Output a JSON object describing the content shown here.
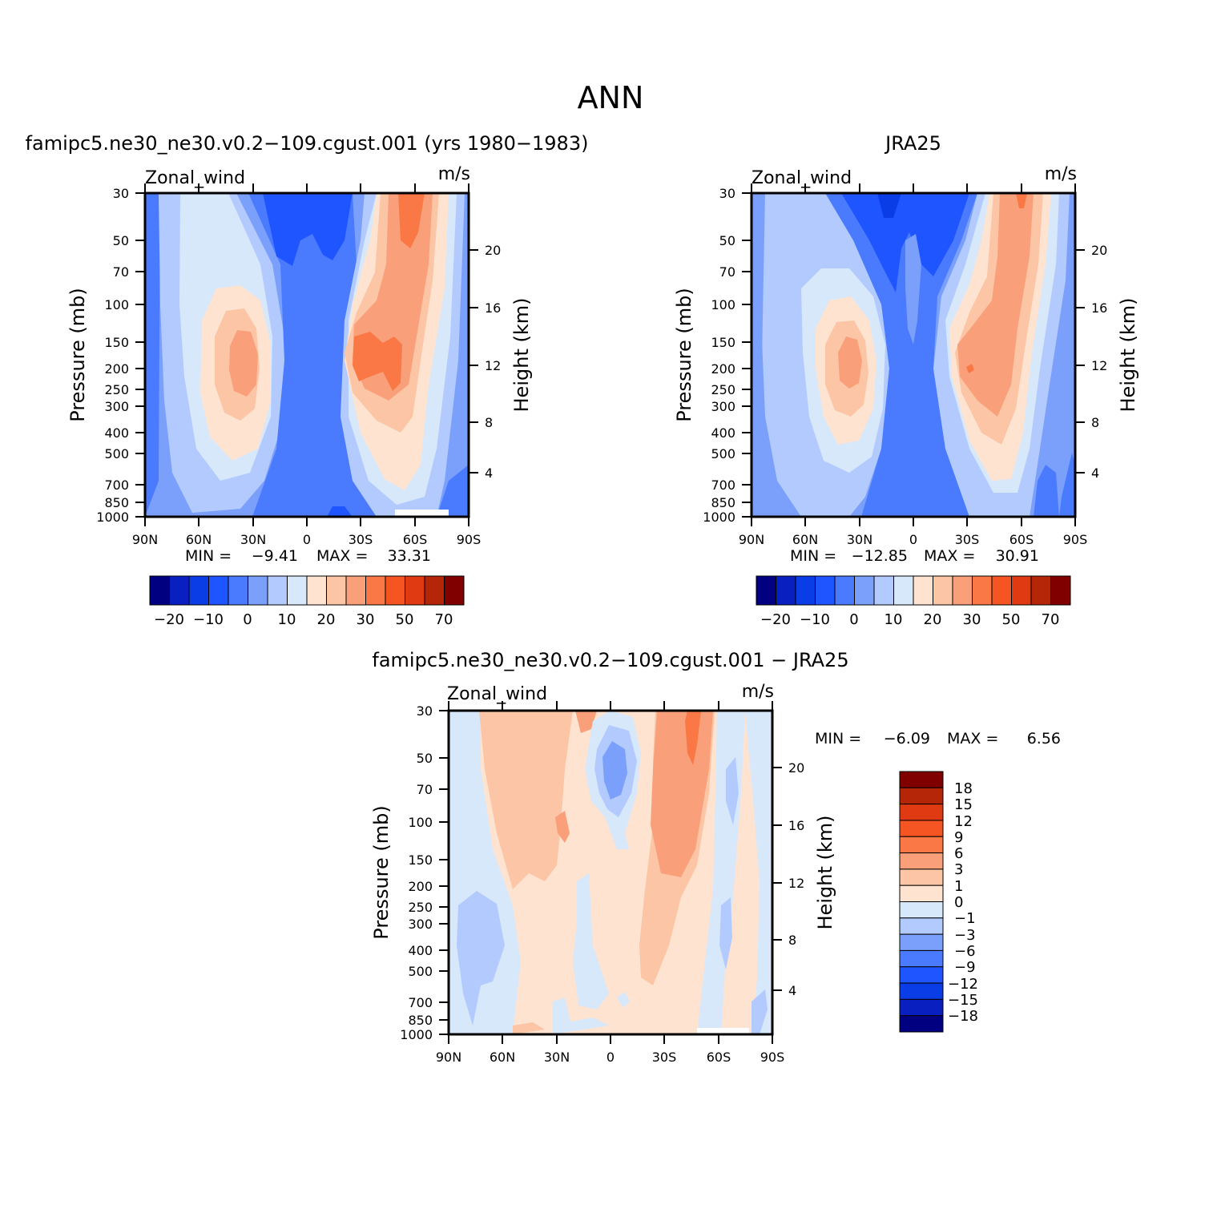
{
  "figure": {
    "title": "ANN"
  },
  "chart_data": [
    {
      "id": "model",
      "type": "heatmap",
      "title": "famipc5.ne30_ne30.v0.2−109.cgust.001 (yrs  1980−1983)",
      "variable": "Zonal_wind",
      "units": "m/s",
      "ylabel": "Pressure  (mb)",
      "ylabel_right": "Height  (km)",
      "x_ticks": [
        "90N",
        "60N",
        "30N",
        "0",
        "30S",
        "60S",
        "90S"
      ],
      "y_ticks": [
        "30",
        "50",
        "70",
        "100",
        "150",
        "200",
        "250",
        "300",
        "400",
        "500",
        "700",
        "850",
        "1000"
      ],
      "y_ticks_right": [
        "20",
        "16",
        "12",
        "8",
        "4"
      ],
      "min_label": "MIN  =",
      "min": "−9.41",
      "max_label": "MAX  =",
      "max": "33.31",
      "colorbar": {
        "orientation": "horizontal",
        "labels": [
          "−20",
          "−10",
          "0",
          "10",
          "20",
          "30",
          "50",
          "70"
        ],
        "colors": [
          "#000080",
          "#0a1fbf",
          "#0a3de6",
          "#1f55ff",
          "#4a7bff",
          "#7aa0fb",
          "#b3caff",
          "#d7e8fb",
          "#fde3d0",
          "#fcc5a5",
          "#f9a07a",
          "#fa7845",
          "#f55522",
          "#e03a12",
          "#b52608",
          "#800000"
        ]
      },
      "features": [
        {
          "type": "subtropical_jet",
          "hemisphere": "north",
          "peak": "20–30 m/s",
          "lat": "35N",
          "pressure": "200 mb"
        },
        {
          "type": "subtropical_jet",
          "hemisphere": "south",
          "peak": "30–50 m/s",
          "lat": "35–45S",
          "pressure": "200 mb"
        },
        {
          "type": "easterlies",
          "region": "tropics",
          "value": "−10 to 0 m/s"
        }
      ]
    },
    {
      "id": "obs",
      "type": "heatmap",
      "title": "JRA25",
      "variable": "Zonal_wind",
      "units": "m/s",
      "ylabel": "Pressure  (mb)",
      "ylabel_right": "Height  (km)",
      "x_ticks": [
        "90N",
        "60N",
        "30N",
        "0",
        "30S",
        "60S",
        "90S"
      ],
      "y_ticks": [
        "30",
        "50",
        "70",
        "100",
        "150",
        "200",
        "250",
        "300",
        "400",
        "500",
        "700",
        "850",
        "1000"
      ],
      "y_ticks_right": [
        "20",
        "16",
        "12",
        "8",
        "4"
      ],
      "min_label": "MIN  =",
      "min": "−12.85",
      "max_label": "MAX  =",
      "max": "30.91",
      "colorbar": {
        "orientation": "horizontal",
        "labels": [
          "−20",
          "−10",
          "0",
          "10",
          "20",
          "30",
          "50",
          "70"
        ],
        "colors": [
          "#000080",
          "#0a1fbf",
          "#0a3de6",
          "#1f55ff",
          "#4a7bff",
          "#7aa0fb",
          "#b3caff",
          "#d7e8fb",
          "#fde3d0",
          "#fcc5a5",
          "#f9a07a",
          "#fa7845",
          "#f55522",
          "#e03a12",
          "#b52608",
          "#800000"
        ]
      },
      "features": [
        {
          "type": "subtropical_jet",
          "hemisphere": "north",
          "peak": "20–30 m/s",
          "lat": "35N",
          "pressure": "200 mb"
        },
        {
          "type": "subtropical_jet",
          "hemisphere": "south",
          "peak": "30–50 m/s",
          "lat": "30–45S",
          "pressure": "200 mb"
        },
        {
          "type": "easterlies",
          "region": "tropics",
          "value": "−10 to 0 m/s"
        }
      ]
    },
    {
      "id": "diff",
      "type": "heatmap",
      "title": "famipc5.ne30_ne30.v0.2−109.cgust.001  −  JRA25",
      "variable": "Zonal_wind",
      "units": "m/s",
      "ylabel": "Pressure  (mb)",
      "ylabel_right": "Height  (km)",
      "x_ticks": [
        "90N",
        "60N",
        "30N",
        "0",
        "30S",
        "60S",
        "90S"
      ],
      "y_ticks": [
        "30",
        "50",
        "70",
        "100",
        "150",
        "200",
        "250",
        "300",
        "400",
        "500",
        "700",
        "850",
        "1000"
      ],
      "y_ticks_right": [
        "20",
        "16",
        "12",
        "8",
        "4"
      ],
      "min_label": "MIN  =",
      "min": "−6.09",
      "max_label": "MAX  =",
      "max": "6.56",
      "colorbar": {
        "orientation": "vertical",
        "labels": [
          "18",
          "15",
          "12",
          "9",
          "6",
          "3",
          "1",
          "0",
          "−1",
          "−3",
          "−6",
          "−9",
          "−12",
          "−15",
          "−18"
        ],
        "colors": [
          "#800000",
          "#b52608",
          "#e03a12",
          "#f55522",
          "#fa7845",
          "#f9a07a",
          "#fcc5a5",
          "#fde3d0",
          "#d7e8fb",
          "#b3caff",
          "#7aa0fb",
          "#4a7bff",
          "#1f55ff",
          "#0a3de6",
          "#0a1fbf",
          "#000080"
        ]
      },
      "features": [
        {
          "type": "positive_bias",
          "region": "40–55S upper troposphere",
          "value": "3–6 m/s"
        },
        {
          "type": "negative_bias",
          "region": "equator 50–100 mb",
          "value": "−3 to −6 m/s"
        }
      ]
    }
  ]
}
